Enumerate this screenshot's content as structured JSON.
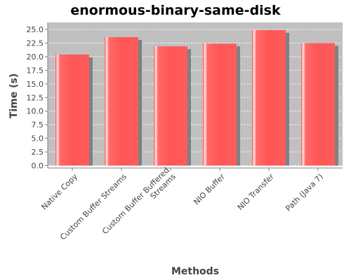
{
  "chart_data": {
    "type": "bar",
    "title": "enormous-binary-same-disk",
    "xlabel": "Methods",
    "ylabel": "Time (s)",
    "categories": [
      "Native Copy",
      "Custom Buffer Streams",
      "Custom Buffer Buffered Streams",
      "NIO Buffer",
      "NIO Transfer",
      "Path (Java 7)"
    ],
    "category_label_lines": [
      [
        "Native Copy"
      ],
      [
        "Custom Buffer Streams"
      ],
      [
        "Custom Buffer Buffered",
        "Streams"
      ],
      [
        "NIO Buffer"
      ],
      [
        "NIO Transfer"
      ],
      [
        "Path (Java 7)"
      ]
    ],
    "values": [
      20.4,
      23.6,
      21.9,
      22.4,
      24.9,
      22.5
    ],
    "ylim": [
      0,
      26.3
    ],
    "yticks": [
      0.0,
      2.5,
      5.0,
      7.5,
      10.0,
      12.5,
      15.0,
      17.5,
      20.0,
      22.5,
      25.0
    ],
    "ytick_labels": [
      "0.0",
      "2.5",
      "5.0",
      "7.5",
      "10.0",
      "12.5",
      "15.0",
      "17.5",
      "20.0",
      "22.5",
      "25.0"
    ],
    "grid": true,
    "legend": "none",
    "colors": {
      "bar": "#ff5555",
      "bar_highlight": "#ffffff",
      "bar_shadow": "#808080",
      "plot_background": "#c0c0c0",
      "gridline": "#ffffff",
      "axis": "#808080",
      "text": "#444444",
      "title": "#000000"
    }
  }
}
